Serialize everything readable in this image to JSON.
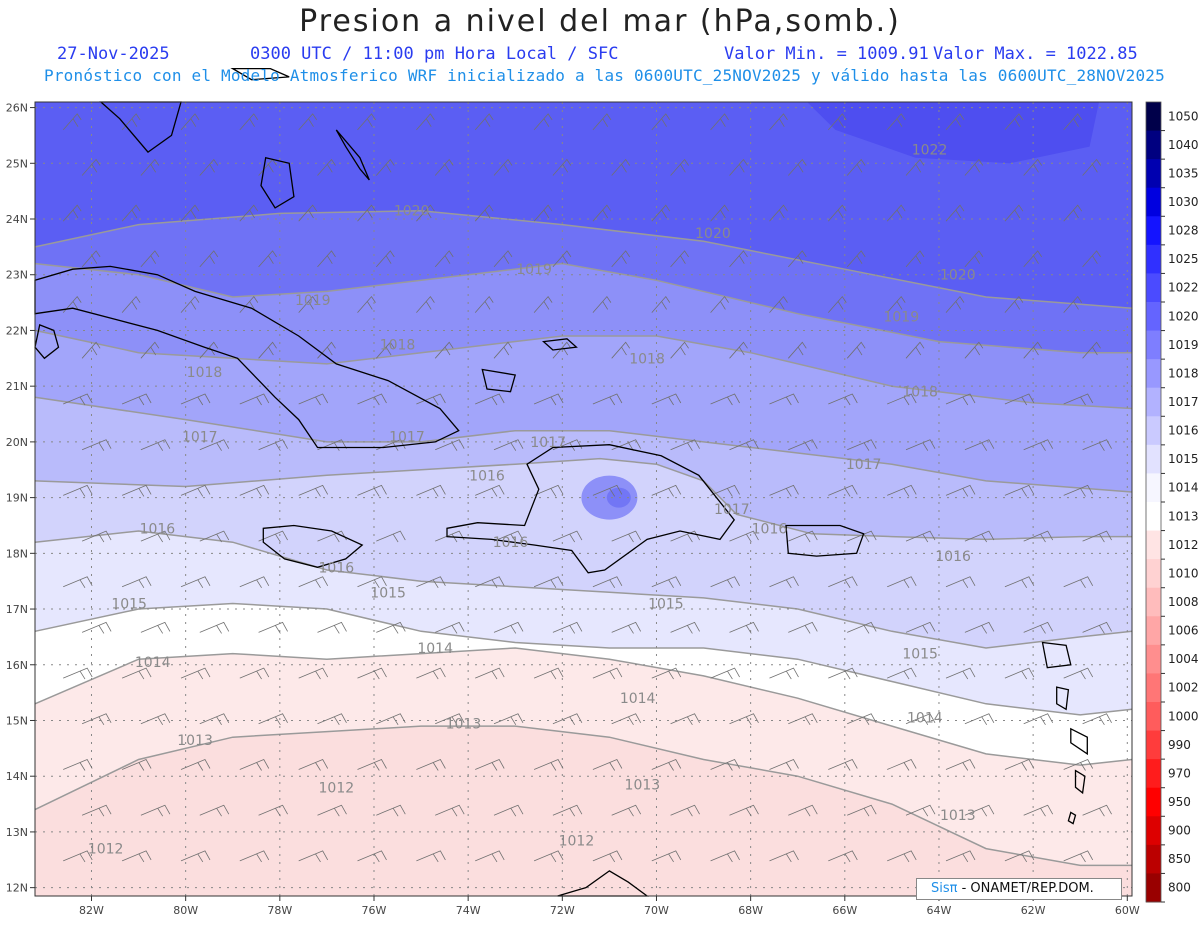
{
  "header": {
    "title": "Presion a nivel del mar (hPa,somb.)",
    "date": "27-Nov-2025",
    "time": "0300 UTC / 11:00 pm Hora Local / SFC",
    "min_label": "Valor Min. = 1009.91",
    "max_label": "Valor Max. = 1022.85",
    "model_line": "Pronóstico con el Modelo Atmosferico WRF inicializado a las 0600UTC_25NOV2025 y válido hasta las  0600UTC_28NOV2025"
  },
  "map": {
    "lon_range": [
      -83.2,
      -59.9
    ],
    "lat_range": [
      11.85,
      26.1
    ],
    "lon_ticks": [
      "82W",
      "80W",
      "78W",
      "76W",
      "74W",
      "72W",
      "70W",
      "68W",
      "66W",
      "64W",
      "62W",
      "60W"
    ],
    "lat_ticks": [
      "12N",
      "13N",
      "14N",
      "15N",
      "16N",
      "17N",
      "18N",
      "19N",
      "20N",
      "21N",
      "22N",
      "23N",
      "24N",
      "25N",
      "26N"
    ],
    "contour_labels": [
      {
        "text": "1022",
        "lon": -64.2,
        "lat": 25.25
      },
      {
        "text": "1020",
        "lon": -75.2,
        "lat": 24.15
      },
      {
        "text": "1020",
        "lon": -68.8,
        "lat": 23.75
      },
      {
        "text": "1020",
        "lon": -63.6,
        "lat": 23.0
      },
      {
        "text": "1019",
        "lon": -72.6,
        "lat": 23.1
      },
      {
        "text": "1019",
        "lon": -77.3,
        "lat": 22.55
      },
      {
        "text": "1019",
        "lon": -64.8,
        "lat": 22.25
      },
      {
        "text": "1018",
        "lon": -75.5,
        "lat": 21.75
      },
      {
        "text": "1018",
        "lon": -70.2,
        "lat": 21.5
      },
      {
        "text": "1018",
        "lon": -79.6,
        "lat": 21.25
      },
      {
        "text": "1018",
        "lon": -64.4,
        "lat": 20.9
      },
      {
        "text": "1017",
        "lon": -79.7,
        "lat": 20.1
      },
      {
        "text": "1017",
        "lon": -75.3,
        "lat": 20.1
      },
      {
        "text": "1017",
        "lon": -72.3,
        "lat": 20.0
      },
      {
        "text": "1017",
        "lon": -65.6,
        "lat": 19.6
      },
      {
        "text": "1017",
        "lon": -68.4,
        "lat": 18.8
      },
      {
        "text": "1016",
        "lon": -73.6,
        "lat": 19.4
      },
      {
        "text": "1016",
        "lon": -80.6,
        "lat": 18.45
      },
      {
        "text": "1016",
        "lon": -73.1,
        "lat": 18.2
      },
      {
        "text": "1016",
        "lon": -67.6,
        "lat": 18.45
      },
      {
        "text": "1016",
        "lon": -63.7,
        "lat": 17.95
      },
      {
        "text": "1016",
        "lon": -76.8,
        "lat": 17.75
      },
      {
        "text": "1015",
        "lon": -81.2,
        "lat": 17.1
      },
      {
        "text": "1015",
        "lon": -75.7,
        "lat": 17.3
      },
      {
        "text": "1015",
        "lon": -69.8,
        "lat": 17.1
      },
      {
        "text": "1015",
        "lon": -64.4,
        "lat": 16.2
      },
      {
        "text": "1014",
        "lon": -80.7,
        "lat": 16.05
      },
      {
        "text": "1014",
        "lon": -74.7,
        "lat": 16.3
      },
      {
        "text": "1014",
        "lon": -70.4,
        "lat": 15.4
      },
      {
        "text": "1014",
        "lon": -64.3,
        "lat": 15.05
      },
      {
        "text": "1013",
        "lon": -74.1,
        "lat": 14.95
      },
      {
        "text": "1013",
        "lon": -79.8,
        "lat": 14.65
      },
      {
        "text": "1013",
        "lon": -70.3,
        "lat": 13.85
      },
      {
        "text": "1013",
        "lon": -63.6,
        "lat": 13.3
      },
      {
        "text": "1012",
        "lon": -76.8,
        "lat": 13.8
      },
      {
        "text": "1012",
        "lon": -81.7,
        "lat": 12.7
      },
      {
        "text": "1012",
        "lon": -71.7,
        "lat": 12.85
      }
    ],
    "colors": {
      "c1022": "#5b5ef3",
      "c1020": "#6f72f5",
      "c1019": "#8d90f8",
      "c1018": "#a2a5fa",
      "c1017": "#b9bbfb",
      "c1016": "#d2d3fc",
      "c1015": "#e6e7fe",
      "c1014": "#ffffff",
      "c1013": "#fde9e9",
      "c1012": "#fbdede",
      "contour": "#9a9a9a",
      "coast": "#000000",
      "barb": "#707070",
      "grid": "#888888"
    }
  },
  "colorbar": {
    "levels": [
      "1050",
      "1040",
      "1035",
      "1030",
      "1028",
      "1025",
      "1022",
      "1020",
      "1019",
      "1018",
      "1017",
      "1016",
      "1015",
      "1014",
      "1013",
      "1012",
      "1010",
      "1008",
      "1006",
      "1004",
      "1002",
      "1000",
      "990",
      "970",
      "950",
      "900",
      "850",
      "800"
    ],
    "colors": [
      "#00004a",
      "#000080",
      "#0000b0",
      "#0000e0",
      "#1414ff",
      "#3030ff",
      "#4b4bff",
      "#6464ff",
      "#7e7eff",
      "#9898ff",
      "#b2b2ff",
      "#cacaff",
      "#e2e2ff",
      "#f6f6ff",
      "#ffffff",
      "#ffe4e4",
      "#ffd2d2",
      "#ffbcbc",
      "#ffa6a6",
      "#ff8e8e",
      "#ff7676",
      "#ff5c5c",
      "#ff3c3c",
      "#ff1c1c",
      "#ff0000",
      "#dd0000",
      "#bb0000",
      "#990000"
    ]
  },
  "credit": {
    "brand": "Sisπ",
    "text": " - ONAMET/REP.DOM."
  }
}
